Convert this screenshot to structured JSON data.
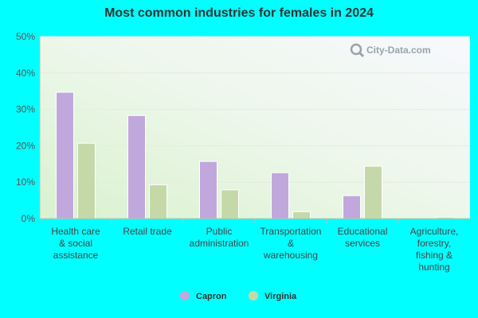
{
  "chart_data": {
    "type": "bar",
    "title": "Most common industries for females in 2024",
    "categories": [
      [
        "Health care",
        "& social",
        "assistance"
      ],
      [
        "Retail trade"
      ],
      [
        "Public",
        "administration"
      ],
      [
        "Transportation",
        "&",
        "warehousing"
      ],
      [
        "Educational",
        "services"
      ],
      [
        "Agriculture,",
        "forestry,",
        "fishing &",
        "hunting"
      ]
    ],
    "series": [
      {
        "name": "Capron",
        "color": "#c0a8dc",
        "values": [
          34.7,
          28.3,
          15.7,
          12.6,
          6.3,
          0.0
        ]
      },
      {
        "name": "Virginia",
        "color": "#c5d9a8",
        "values": [
          20.7,
          9.3,
          7.9,
          1.9,
          14.4,
          0.4
        ]
      }
    ],
    "yticks": [
      "0%",
      "10%",
      "20%",
      "30%",
      "40%",
      "50%"
    ],
    "ylim": [
      0,
      50
    ],
    "grid": true,
    "legend": "bottom-center",
    "xlabel": "",
    "ylabel": ""
  },
  "watermark": {
    "text": "City-Data.com",
    "icon": "magnifier-icon"
  }
}
